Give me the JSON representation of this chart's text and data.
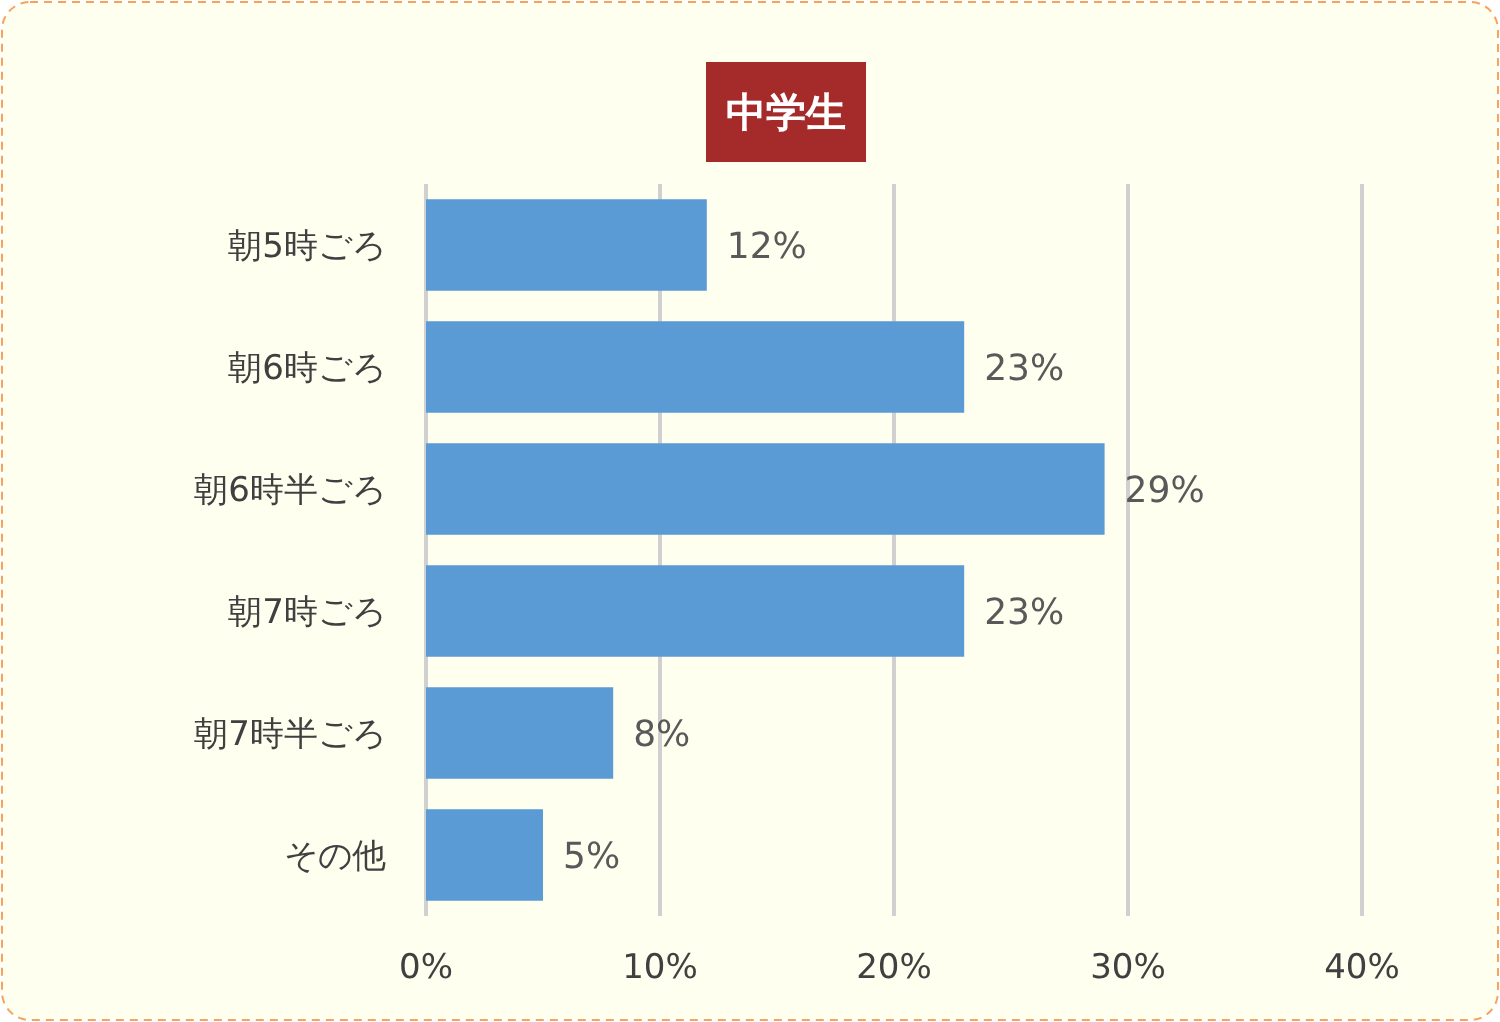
{
  "chart_data": {
    "type": "bar",
    "orientation": "horizontal",
    "title": "中学生",
    "categories": [
      "朝5時ごろ",
      "朝6時ごろ",
      "朝6時半ごろ",
      "朝7時ごろ",
      "朝7時半ごろ",
      "その他"
    ],
    "values": [
      12,
      23,
      29,
      23,
      8,
      5
    ],
    "color": "#5b9bd5",
    "value_labels": [
      "12%",
      "23%",
      "29%",
      "23%",
      "8%",
      "5%"
    ],
    "xlim": [
      0,
      40
    ],
    "xticks": [
      {
        "value": 0,
        "label": "0%"
      },
      {
        "value": 10,
        "label": "10%"
      },
      {
        "value": 20,
        "label": "20%"
      },
      {
        "value": 30,
        "label": "30%"
      },
      {
        "value": 40,
        "label": "40%"
      }
    ],
    "grid": "x"
  }
}
